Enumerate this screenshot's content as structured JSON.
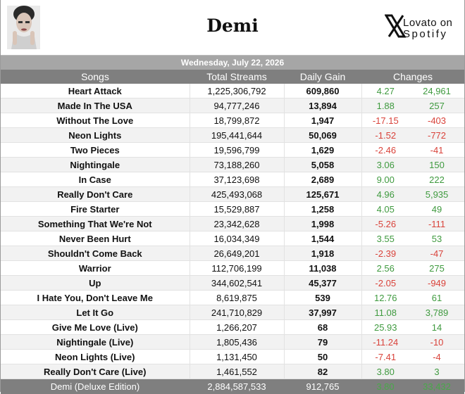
{
  "header": {
    "title": "Demi",
    "brand_line1": "Lovato on",
    "brand_line2": "Spotify"
  },
  "date": "Wednesday, July 22, 2026",
  "columns": [
    "Songs",
    "Total Streams",
    "Daily Gain",
    "Changes"
  ],
  "rows": [
    {
      "song": "Heart Attack",
      "streams": "1,225,306,792",
      "gain": "609,860",
      "pct": "4.27",
      "diff": "24,961",
      "dir": "pos"
    },
    {
      "song": "Made In The USA",
      "streams": "94,777,246",
      "gain": "13,894",
      "pct": "1.88",
      "diff": "257",
      "dir": "pos"
    },
    {
      "song": "Without The Love",
      "streams": "18,799,872",
      "gain": "1,947",
      "pct": "-17.15",
      "diff": "-403",
      "dir": "neg"
    },
    {
      "song": "Neon Lights",
      "streams": "195,441,644",
      "gain": "50,069",
      "pct": "-1.52",
      "diff": "-772",
      "dir": "neg"
    },
    {
      "song": "Two Pieces",
      "streams": "19,596,799",
      "gain": "1,629",
      "pct": "-2.46",
      "diff": "-41",
      "dir": "neg"
    },
    {
      "song": "Nightingale",
      "streams": "73,188,260",
      "gain": "5,058",
      "pct": "3.06",
      "diff": "150",
      "dir": "pos"
    },
    {
      "song": "In Case",
      "streams": "37,123,698",
      "gain": "2,689",
      "pct": "9.00",
      "diff": "222",
      "dir": "pos"
    },
    {
      "song": "Really Don't Care",
      "streams": "425,493,068",
      "gain": "125,671",
      "pct": "4.96",
      "diff": "5,935",
      "dir": "pos"
    },
    {
      "song": "Fire Starter",
      "streams": "15,529,887",
      "gain": "1,258",
      "pct": "4.05",
      "diff": "49",
      "dir": "pos"
    },
    {
      "song": "Something That We're Not",
      "streams": "23,342,628",
      "gain": "1,998",
      "pct": "-5.26",
      "diff": "-111",
      "dir": "neg"
    },
    {
      "song": "Never Been Hurt",
      "streams": "16,034,349",
      "gain": "1,544",
      "pct": "3.55",
      "diff": "53",
      "dir": "pos"
    },
    {
      "song": "Shouldn't Come Back",
      "streams": "26,649,201",
      "gain": "1,918",
      "pct": "-2.39",
      "diff": "-47",
      "dir": "neg"
    },
    {
      "song": "Warrior",
      "streams": "112,706,199",
      "gain": "11,038",
      "pct": "2.56",
      "diff": "275",
      "dir": "pos"
    },
    {
      "song": "Up",
      "streams": "344,602,541",
      "gain": "45,377",
      "pct": "-2.05",
      "diff": "-949",
      "dir": "neg"
    },
    {
      "song": "I Hate You, Don't Leave Me",
      "streams": "8,619,875",
      "gain": "539",
      "pct": "12.76",
      "diff": "61",
      "dir": "pos"
    },
    {
      "song": "Let It Go",
      "streams": "241,710,829",
      "gain": "37,997",
      "pct": "11.08",
      "diff": "3,789",
      "dir": "pos"
    },
    {
      "song": "Give Me Love (Live)",
      "streams": "1,266,207",
      "gain": "68",
      "pct": "25.93",
      "diff": "14",
      "dir": "pos"
    },
    {
      "song": "Nightingale (Live)",
      "streams": "1,805,436",
      "gain": "79",
      "pct": "-11.24",
      "diff": "-10",
      "dir": "neg"
    },
    {
      "song": "Neon Lights  (Live)",
      "streams": "1,131,450",
      "gain": "50",
      "pct": "-7.41",
      "diff": "-4",
      "dir": "neg"
    },
    {
      "song": "Really Don't Care (Live)",
      "streams": "1,461,552",
      "gain": "82",
      "pct": "3.80",
      "diff": "3",
      "dir": "pos"
    }
  ],
  "total": {
    "label": "Demi (Deluxe Edition)",
    "streams": "2,884,587,533",
    "gain": "912,765",
    "pct": "3.80",
    "diff": "33,432"
  },
  "colors": {
    "positive": "#3f9a3f",
    "negative": "#d9423a",
    "header_bg": "#7f7f7f",
    "date_bg": "#a6a6a6"
  },
  "icons": {
    "avatar": "album-cover-image",
    "brand": "x-logo-icon"
  }
}
